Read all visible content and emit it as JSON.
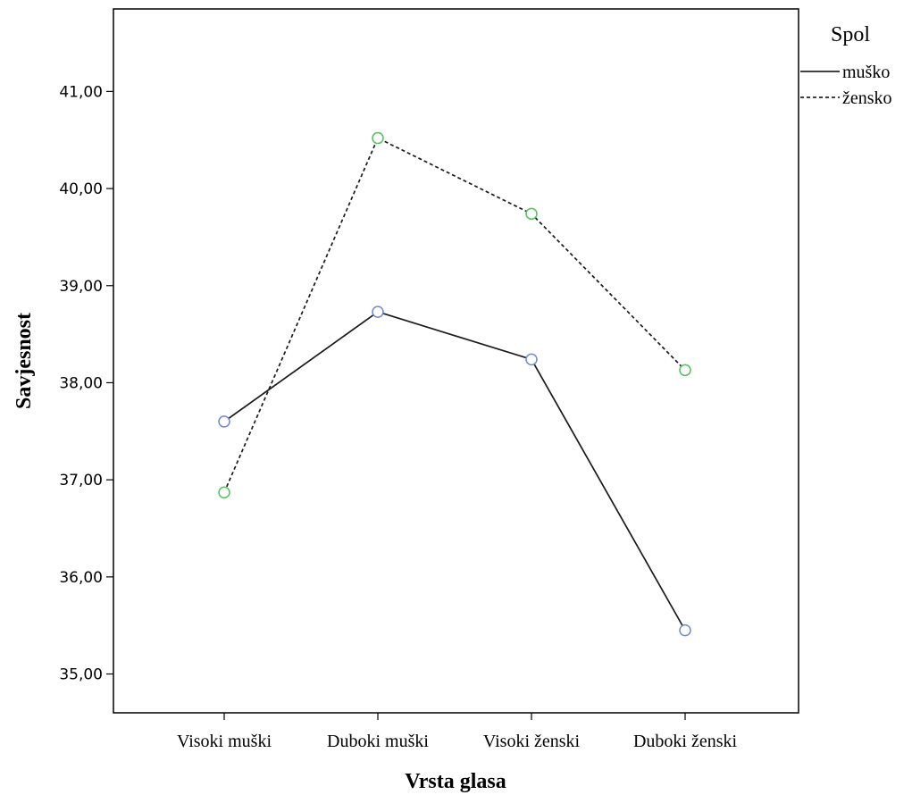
{
  "chart_data": {
    "type": "line",
    "xlabel": "Vrsta glasa",
    "ylabel": "Savjesnost",
    "categories": [
      "Visoki muški",
      "Duboki muški",
      "Visoki ženski",
      "Duboki ženski"
    ],
    "ylim": [
      34.6,
      41.85
    ],
    "yticks": [
      35,
      36,
      37,
      38,
      39,
      40,
      41
    ],
    "ytick_labels": [
      "35,00",
      "36,00",
      "37,00",
      "38,00",
      "39,00",
      "40,00",
      "41,00"
    ],
    "grid": false,
    "legend": {
      "title": "Spol",
      "placement": "top-right outside plot"
    },
    "series": [
      {
        "name": "muško",
        "values": [
          37.6,
          38.73,
          38.24,
          35.45
        ],
        "line_style": "solid",
        "line_color": "#1a1a1a",
        "marker_color": "#6f88d6"
      },
      {
        "name": "žensko",
        "values": [
          36.87,
          40.52,
          39.74,
          38.13
        ],
        "line_style": "dashed",
        "line_color": "#1a1a1a",
        "marker_color": "#4ec45a"
      }
    ]
  }
}
